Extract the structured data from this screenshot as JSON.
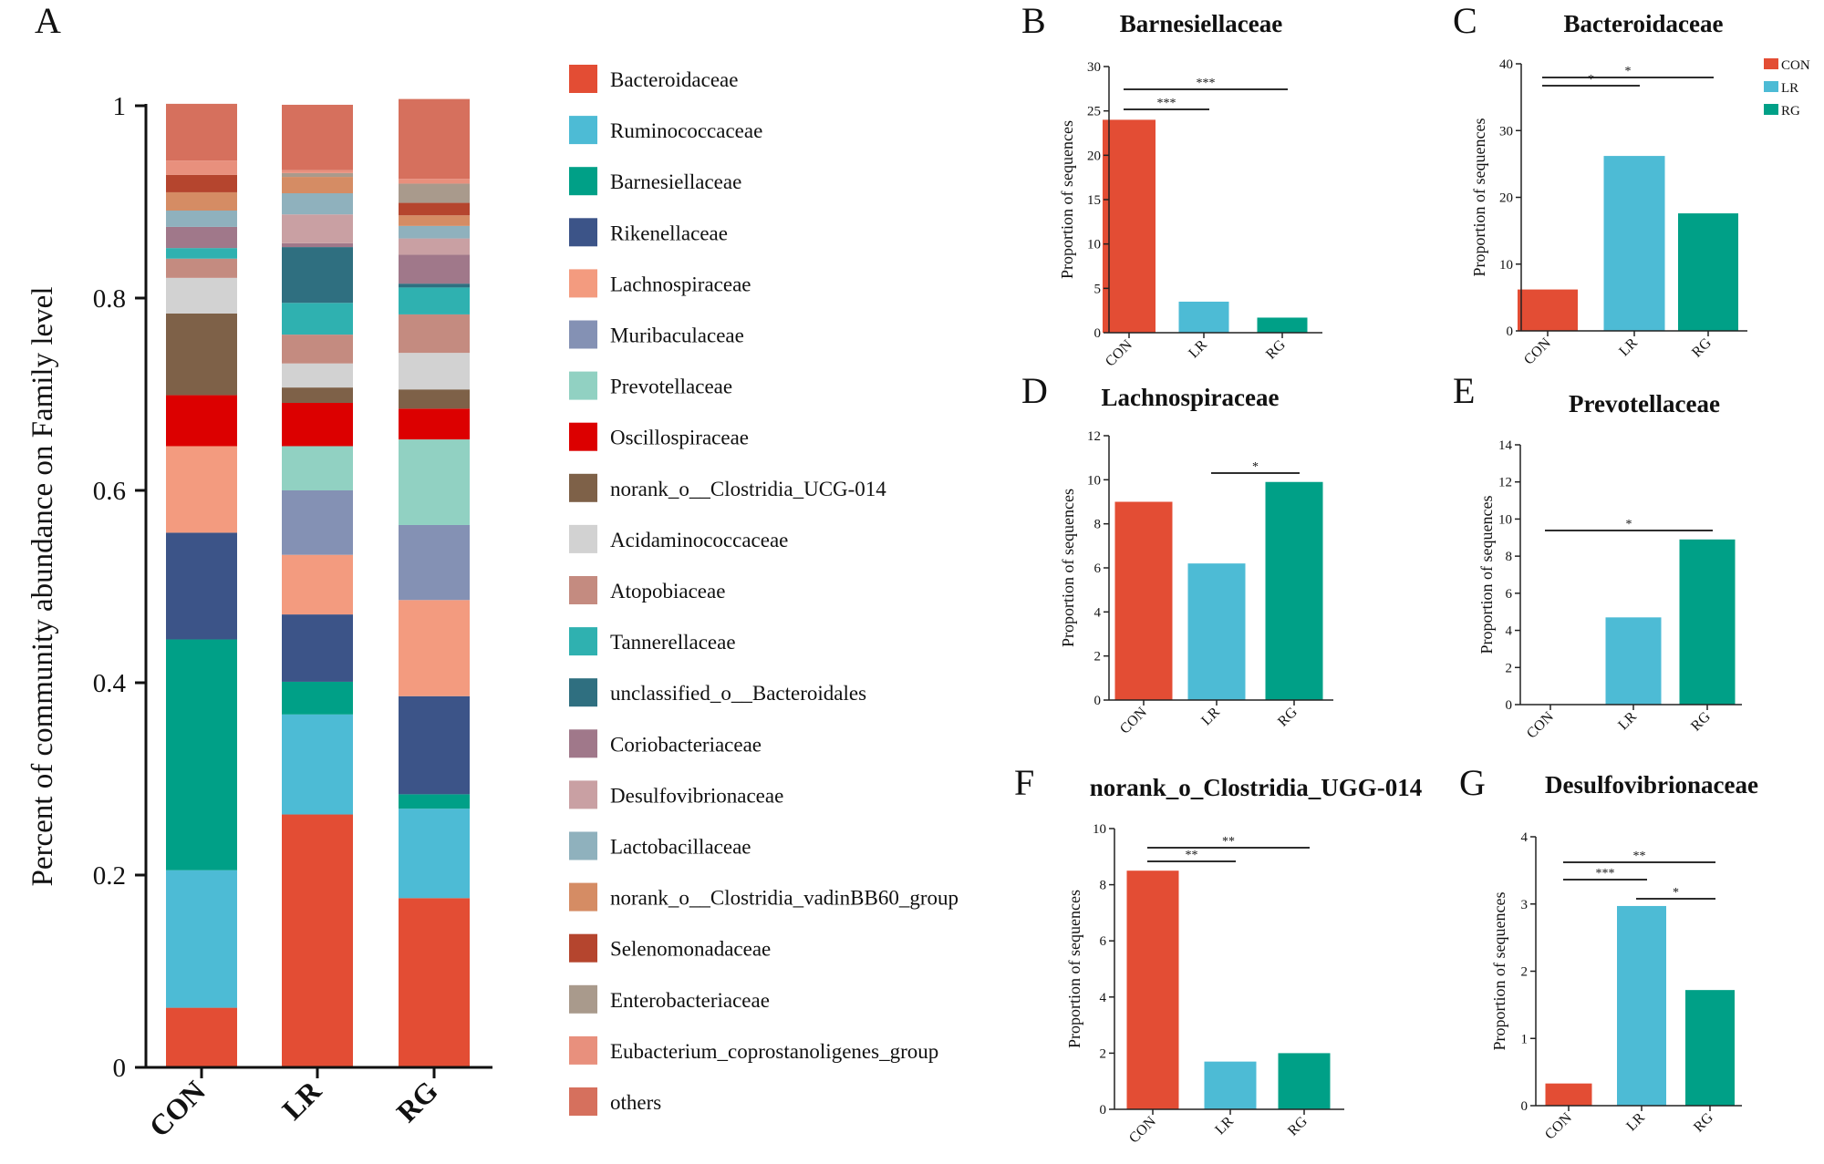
{
  "legend": [
    {
      "name": "Bacteroidaceae",
      "color": "#e34d34"
    },
    {
      "name": "Ruminococcaceae",
      "color": "#4dbbd5"
    },
    {
      "name": "Barnesiellaceae",
      "color": "#00a087"
    },
    {
      "name": "Rikenellaceae",
      "color": "#3c5488"
    },
    {
      "name": "Lachnospiraceae",
      "color": "#f39b7f"
    },
    {
      "name": "Muribaculaceae",
      "color": "#8491b4"
    },
    {
      "name": "Prevotellaceae",
      "color": "#91d1c2"
    },
    {
      "name": "Oscillospiraceae",
      "color": "#dc0000"
    },
    {
      "name": "norank_o__Clostridia_UCG-014",
      "color": "#7e6148"
    },
    {
      "name": "Acidaminococcaceae",
      "color": "#d2d2d2"
    },
    {
      "name": "Atopobiaceae",
      "color": "#c48b80"
    },
    {
      "name": "Tannerellaceae",
      "color": "#2fb1b0"
    },
    {
      "name": "unclassified_o__Bacteroidales",
      "color": "#2f6f80"
    },
    {
      "name": "Coriobacteriaceae",
      "color": "#a0788a"
    },
    {
      "name": "Desulfovibrionaceae",
      "color": "#c9a0a3"
    },
    {
      "name": "Lactobacillaceae",
      "color": "#8fb1bd"
    },
    {
      "name": "norank_o__Clostridia_vadinBB60_group",
      "color": "#d58c64"
    },
    {
      "name": "Selenomonadaceae",
      "color": "#b5452e"
    },
    {
      "name": "Enterobacteriaceae",
      "color": "#a99a8c"
    },
    {
      "name": "Eubacterium_coprostanoligenes_group",
      "color": "#e8907d"
    },
    {
      "name": "others",
      "color": "#d6705d"
    }
  ],
  "group_colors": {
    "CON": "#e34d34",
    "LR": "#4dbbd5",
    "RG": "#00a087"
  },
  "chart_data": [
    {
      "panel": "A",
      "type": "stacked-bar",
      "title": "",
      "ylabel": "Percent of community abundance on Family level",
      "ylim": [
        0,
        1
      ],
      "yticks": [
        0,
        0.2,
        0.4,
        0.6,
        0.8,
        1
      ],
      "ytick_labels": [
        "0",
        "0.2",
        "0.4",
        "0.6",
        "0.8",
        "1"
      ],
      "categories": [
        "CON",
        "LR",
        "RG"
      ],
      "series": [
        {
          "name": "Bacteroidaceae",
          "values": [
            0.062,
            0.263,
            0.176
          ]
        },
        {
          "name": "Ruminococcaceae",
          "values": [
            0.143,
            0.104,
            0.093
          ]
        },
        {
          "name": "Barnesiellaceae",
          "values": [
            0.24,
            0.034,
            0.015
          ]
        },
        {
          "name": "Rikenellaceae",
          "values": [
            0.111,
            0.07,
            0.102
          ]
        },
        {
          "name": "Lachnospiraceae",
          "values": [
            0.09,
            0.062,
            0.1
          ]
        },
        {
          "name": "Muribaculaceae",
          "values": [
            0.0,
            0.067,
            0.078
          ]
        },
        {
          "name": "Prevotellaceae",
          "values": [
            0.0,
            0.046,
            0.089
          ]
        },
        {
          "name": "Oscillospiraceae",
          "values": [
            0.053,
            0.045,
            0.032
          ]
        },
        {
          "name": "norank_o__Clostridia_UCG-014",
          "values": [
            0.085,
            0.016,
            0.02
          ]
        },
        {
          "name": "Acidaminococcaceae",
          "values": [
            0.037,
            0.025,
            0.038
          ]
        },
        {
          "name": "Atopobiaceae",
          "values": [
            0.02,
            0.03,
            0.04
          ]
        },
        {
          "name": "Tannerellaceae",
          "values": [
            0.011,
            0.033,
            0.028
          ]
        },
        {
          "name": "unclassified_o__Bacteroidales",
          "values": [
            0.0,
            0.058,
            0.004
          ]
        },
        {
          "name": "Coriobacteriaceae",
          "values": [
            0.022,
            0.004,
            0.03
          ]
        },
        {
          "name": "Desulfovibrionaceae",
          "values": [
            0.0,
            0.03,
            0.017
          ]
        },
        {
          "name": "Lactobacillaceae",
          "values": [
            0.017,
            0.022,
            0.013
          ]
        },
        {
          "name": "norank_o__Clostridia_vadinBB60_group",
          "values": [
            0.019,
            0.017,
            0.011
          ]
        },
        {
          "name": "Selenomonadaceae",
          "values": [
            0.018,
            0.0,
            0.013
          ]
        },
        {
          "name": "Enterobacteriaceae",
          "values": [
            0.0,
            0.004,
            0.02
          ]
        },
        {
          "name": "Eubacterium_coprostanoligenes_group",
          "values": [
            0.015,
            0.003,
            0.005
          ]
        },
        {
          "name": "others",
          "values": [
            0.059,
            0.068,
            0.083
          ]
        }
      ]
    },
    {
      "panel": "B",
      "type": "bar",
      "title": "Barnesiellaceae",
      "ylabel": "Proportion of sequences",
      "categories": [
        "CON",
        "LR",
        "RG"
      ],
      "values": [
        24,
        3.5,
        1.7
      ],
      "ylim": [
        0,
        30
      ],
      "yticks": [
        0,
        5,
        10,
        15,
        20,
        25,
        30
      ],
      "significance": [
        {
          "from": "CON",
          "to": "LR",
          "label": "***"
        },
        {
          "from": "CON",
          "to": "RG",
          "label": "***"
        }
      ]
    },
    {
      "panel": "C",
      "type": "bar",
      "title": "Bacteroidaceae",
      "ylabel": "Proportion of sequences",
      "categories": [
        "CON",
        "LR",
        "RG"
      ],
      "values": [
        6.2,
        26.2,
        17.6
      ],
      "ylim": [
        0,
        40
      ],
      "yticks": [
        0,
        10,
        20,
        30,
        40
      ],
      "significance": [
        {
          "from": "CON",
          "to": "LR",
          "label": "*"
        },
        {
          "from": "CON",
          "to": "RG",
          "label": "*"
        }
      ],
      "legend": [
        "CON",
        "LR",
        "RG"
      ]
    },
    {
      "panel": "D",
      "type": "bar",
      "title": "Lachnospiraceae",
      "ylabel": "Proportion of sequences",
      "categories": [
        "CON",
        "LR",
        "RG"
      ],
      "values": [
        9.0,
        6.2,
        9.9
      ],
      "ylim": [
        0,
        12
      ],
      "yticks": [
        0,
        2,
        4,
        6,
        8,
        10,
        12
      ],
      "significance": [
        {
          "from": "LR",
          "to": "RG",
          "label": "*"
        }
      ]
    },
    {
      "panel": "E",
      "type": "bar",
      "title": "Prevotellaceae",
      "ylabel": "Proportion of sequences",
      "categories": [
        "CON",
        "LR",
        "RG"
      ],
      "values": [
        0,
        4.7,
        8.9
      ],
      "ylim": [
        0,
        14
      ],
      "yticks": [
        0,
        2,
        4,
        6,
        8,
        10,
        12,
        14
      ],
      "significance": [
        {
          "from": "CON",
          "to": "RG",
          "label": "*"
        }
      ]
    },
    {
      "panel": "F",
      "type": "bar",
      "title": "norank_o_Clostridia_UGG-014",
      "ylabel": "Proportion of sequences",
      "categories": [
        "CON",
        "LR",
        "RG"
      ],
      "values": [
        8.5,
        1.7,
        2.0
      ],
      "ylim": [
        0,
        10
      ],
      "yticks": [
        0,
        2,
        4,
        6,
        8,
        10
      ],
      "significance": [
        {
          "from": "CON",
          "to": "LR",
          "label": "**"
        },
        {
          "from": "CON",
          "to": "RG",
          "label": "**"
        }
      ]
    },
    {
      "panel": "G",
      "type": "bar",
      "title": "Desulfovibrionaceae",
      "ylabel": "Proportion of sequences",
      "categories": [
        "CON",
        "LR",
        "RG"
      ],
      "values": [
        0.33,
        2.97,
        1.72
      ],
      "ylim": [
        0,
        4
      ],
      "yticks": [
        0,
        1,
        2,
        3,
        4
      ],
      "significance": [
        {
          "from": "CON",
          "to": "LR",
          "label": "***"
        },
        {
          "from": "CON",
          "to": "RG",
          "label": "**"
        },
        {
          "from": "LR",
          "to": "RG",
          "label": "*"
        }
      ]
    }
  ]
}
